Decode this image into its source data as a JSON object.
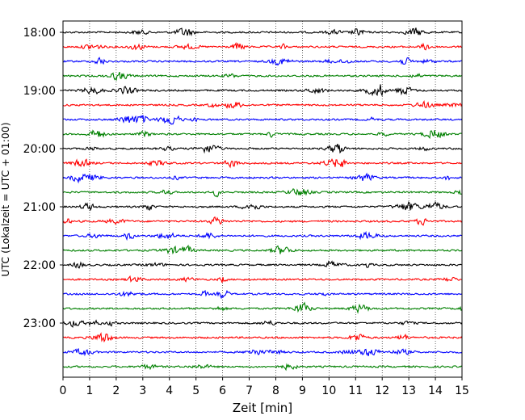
{
  "chart_data": {
    "type": "line",
    "title": "",
    "xlabel": "Zeit  [min]",
    "ylabel": "UTC (Lokalzeit = UTC + 01:00)",
    "xlim": [
      0,
      15
    ],
    "x_ticks": [
      "0",
      "1",
      "2",
      "3",
      "4",
      "5",
      "6",
      "7",
      "8",
      "9",
      "10",
      "11",
      "12",
      "13",
      "14",
      "15"
    ],
    "y_tick_labels": [
      "18:00",
      "19:00",
      "20:00",
      "21:00",
      "22:00",
      "23:00"
    ],
    "trace_interval_minutes": 15,
    "start_time": "18:00",
    "trace_count": 24,
    "trace_colors": [
      "#000000",
      "#ff0000",
      "#0000ff",
      "#008000"
    ],
    "grid": "vertical dotted"
  }
}
